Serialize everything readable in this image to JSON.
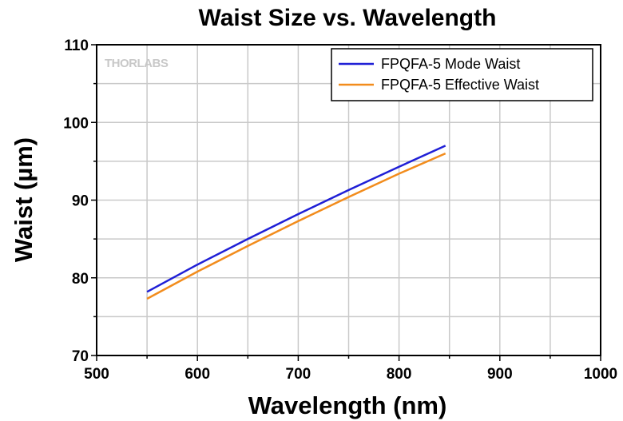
{
  "chart_data": {
    "type": "line",
    "title": "Waist Size vs. Wavelength",
    "xlabel": "Wavelength (nm)",
    "ylabel": "Waist (µm)",
    "xlim": [
      500,
      1000
    ],
    "ylim": [
      70,
      110
    ],
    "xticks": [
      500,
      600,
      700,
      800,
      900,
      1000
    ],
    "yticks": [
      70,
      80,
      90,
      100,
      110
    ],
    "grid": true,
    "legend_position": "top-right",
    "watermark": "THORLABS",
    "series": [
      {
        "name": "FPQFA-5 Mode Waist",
        "color": "#1f1fd6",
        "x": [
          550,
          600,
          650,
          700,
          750,
          800,
          846
        ],
        "y": [
          78.2,
          81.7,
          85.0,
          88.2,
          91.3,
          94.3,
          97.0
        ]
      },
      {
        "name": "FPQFA-5 Effective Waist",
        "color": "#f28c1c",
        "x": [
          550,
          600,
          650,
          700,
          750,
          800,
          846
        ],
        "y": [
          77.3,
          80.8,
          84.1,
          87.3,
          90.4,
          93.4,
          96.0
        ]
      }
    ]
  }
}
